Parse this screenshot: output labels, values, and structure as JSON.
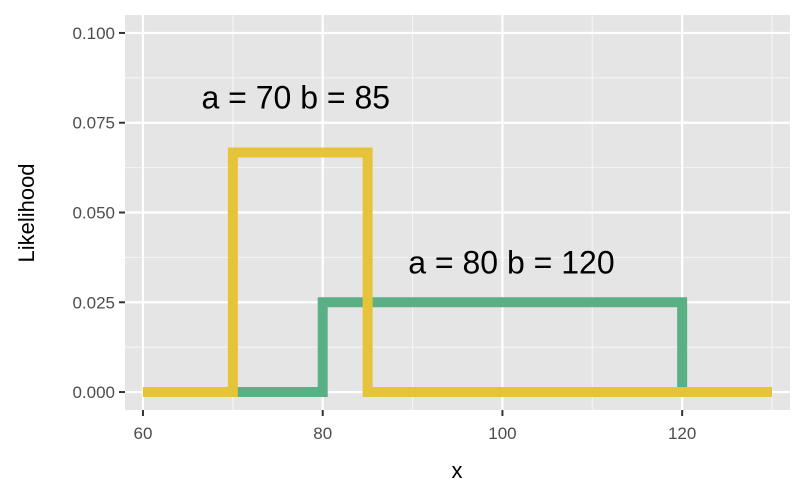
{
  "chart_data": {
    "type": "line",
    "title": "",
    "xlabel": "x",
    "ylabel": "Likelihood",
    "xlim": [
      58,
      132
    ],
    "ylim": [
      -0.005,
      0.105
    ],
    "x_ticks": [
      60,
      80,
      100,
      120
    ],
    "x_tick_labels": [
      "60",
      "80",
      "100",
      "120"
    ],
    "x_minor_ticks": [
      70,
      90,
      110,
      130
    ],
    "y_ticks": [
      0.0,
      0.025,
      0.05,
      0.075,
      0.1
    ],
    "y_tick_labels": [
      "0.000",
      "0.025",
      "0.050",
      "0.075",
      "0.100"
    ],
    "y_minor_ticks": [
      0.0125,
      0.0375,
      0.0625,
      0.0875
    ],
    "grid": true,
    "series": [
      {
        "name": "a = 80 b = 120",
        "color": "#5aaf84",
        "x": [
          60,
          80,
          80,
          120,
          120,
          130
        ],
        "y": [
          0.0,
          0.0,
          0.025,
          0.025,
          0.0,
          0.0
        ]
      },
      {
        "name": "a = 70 b = 85",
        "color": "#e6c43a",
        "x": [
          60,
          70,
          70,
          85,
          85,
          130
        ],
        "y": [
          0.0,
          0.0,
          0.0667,
          0.0667,
          0.0,
          0.0
        ]
      }
    ],
    "annotations": [
      {
        "text": "a = 70 b = 85",
        "x": 77,
        "y": 0.079,
        "series": 1
      },
      {
        "text": "a = 80 b = 120",
        "x": 101,
        "y": 0.033,
        "series": 0
      }
    ]
  }
}
